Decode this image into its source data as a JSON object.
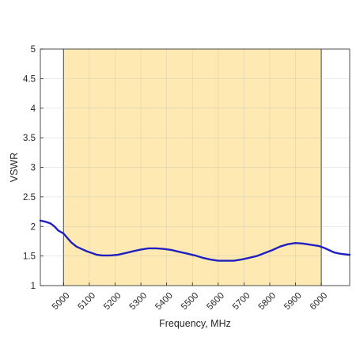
{
  "chart_data": {
    "type": "line",
    "xlabel": "Frequency, MHz",
    "ylabel": "VSWR",
    "xlim": [
      4910,
      6110
    ],
    "ylim": [
      1,
      5
    ],
    "x_ticks": [
      "5000",
      "5100",
      "5200",
      "5300",
      "5400",
      "5500",
      "5600",
      "5700",
      "5800",
      "5900",
      "6000"
    ],
    "y_ticks": [
      "1",
      "1.5",
      "2",
      "2.5",
      "3",
      "3.5",
      "4",
      "4.5",
      "5"
    ],
    "grid": true,
    "highlight_band": {
      "x_from": 5000,
      "x_to": 6000,
      "color": "#fde9b1"
    },
    "series": [
      {
        "color": "#2020c0",
        "x": [
          4910,
          4930,
          4950,
          4965,
          4980,
          5000,
          5010,
          5030,
          5050,
          5070,
          5090,
          5110,
          5130,
          5150,
          5180,
          5210,
          5240,
          5270,
          5300,
          5330,
          5360,
          5390,
          5420,
          5450,
          5480,
          5510,
          5540,
          5570,
          5600,
          5630,
          5660,
          5690,
          5720,
          5750,
          5780,
          5810,
          5840,
          5870,
          5900,
          5930,
          5960,
          5990,
          6010,
          6030,
          6050,
          6070,
          6090,
          6110
        ],
        "values": [
          2.1,
          2.08,
          2.05,
          2.0,
          1.93,
          1.88,
          1.83,
          1.73,
          1.66,
          1.62,
          1.58,
          1.55,
          1.52,
          1.51,
          1.51,
          1.52,
          1.55,
          1.58,
          1.61,
          1.63,
          1.63,
          1.62,
          1.6,
          1.57,
          1.54,
          1.51,
          1.47,
          1.44,
          1.42,
          1.42,
          1.42,
          1.44,
          1.47,
          1.5,
          1.55,
          1.6,
          1.66,
          1.7,
          1.72,
          1.71,
          1.69,
          1.67,
          1.64,
          1.6,
          1.56,
          1.54,
          1.53,
          1.52
        ]
      }
    ]
  }
}
